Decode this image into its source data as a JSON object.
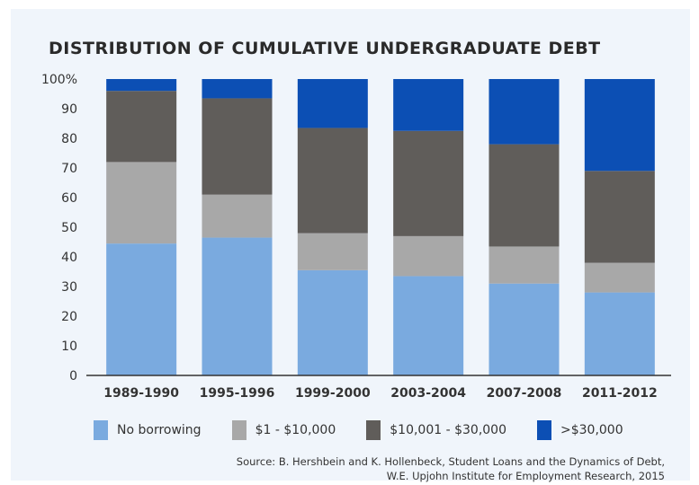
{
  "chart_data": {
    "type": "bar",
    "stacked": true,
    "title": "DISTRIBUTION OF CUMULATIVE UNDERGRADUATE DEBT",
    "categories": [
      "1989-1990",
      "1995-1996",
      "1999-2000",
      "2003-2004",
      "2007-2008",
      "2011-2012"
    ],
    "series": [
      {
        "name": "No borrowing",
        "color": "#7aaadf",
        "values": [
          44.5,
          46.5,
          35.5,
          33.5,
          31,
          28
        ]
      },
      {
        "name": "$1 - $10,000",
        "color": "#a8a8a8",
        "values": [
          27.5,
          14.5,
          12.5,
          13.5,
          12.5,
          10
        ]
      },
      {
        "name": "$10,001 - $30,000",
        "color": "#605d5a",
        "values": [
          24,
          32.5,
          35.5,
          35.5,
          34.5,
          31
        ]
      },
      {
        "name": ">$30,000",
        "color": "#0c4fb4",
        "values": [
          4,
          6.5,
          16.5,
          17.5,
          22,
          31
        ]
      }
    ],
    "y_ticks": [
      "0",
      "10",
      "20",
      "30",
      "40",
      "50",
      "60",
      "70",
      "80",
      "90",
      "100%"
    ],
    "ylim": [
      0,
      100
    ],
    "grid": false,
    "legend": "bottom"
  },
  "source": {
    "line1": "Source: B. Hershbein and K. Hollenbeck, Student Loans and the Dynamics of Debt,",
    "line2": "W.E. Upjohn Institute for Employment Research, 2015"
  }
}
